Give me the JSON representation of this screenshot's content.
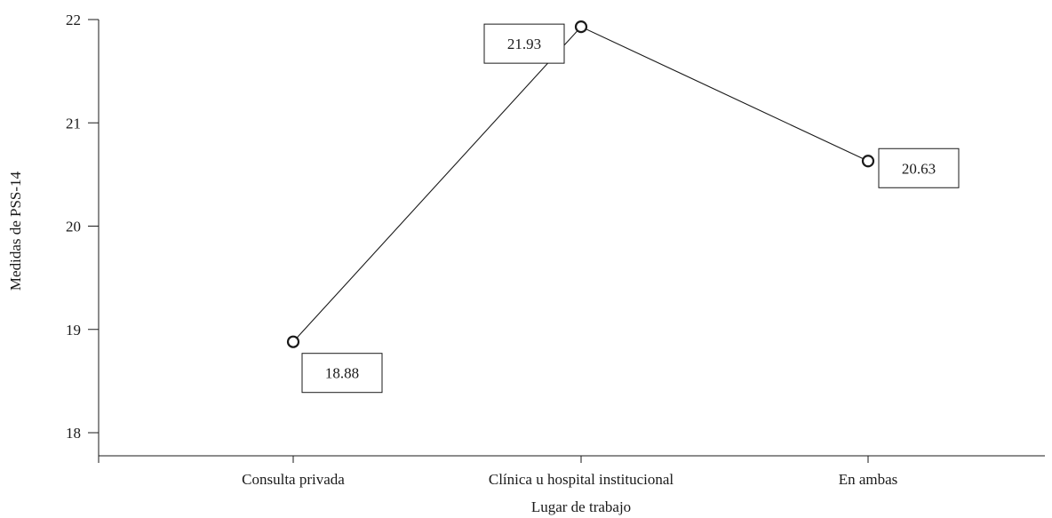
{
  "chart_data": {
    "type": "line",
    "title": "",
    "xlabel": "Lugar de trabajo",
    "ylabel": "Medidas de PSS-14",
    "categories": [
      "Consulta privada",
      "Clínica u hospital institucional",
      "En ambas"
    ],
    "series": [
      {
        "values": [
          18.88,
          21.93,
          20.63
        ]
      }
    ],
    "data_labels": [
      "18.88",
      "21.93",
      "20.63"
    ],
    "ylim": [
      18,
      22
    ],
    "yticks": [
      18,
      19,
      20,
      21,
      22
    ],
    "grid": false,
    "legend": "none",
    "marker": "hollow-circle",
    "colors": {
      "line": "#1a1a1a",
      "marker_fill": "#ffffff"
    }
  }
}
